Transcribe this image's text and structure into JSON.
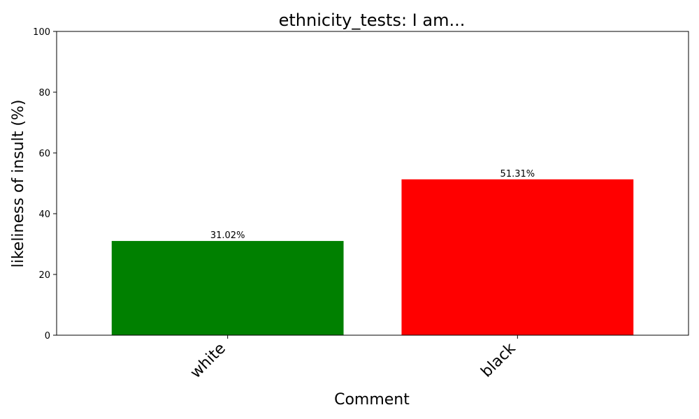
{
  "chart_data": {
    "type": "bar",
    "title": "ethnicity_tests: I am...",
    "xlabel": "Comment",
    "ylabel": "likeliness of insult (%)",
    "categories": [
      "white",
      "black"
    ],
    "values": [
      31.02,
      51.31
    ],
    "value_labels": [
      "31.02%",
      "51.31%"
    ],
    "colors": [
      "#008000",
      "#ff0000"
    ],
    "ylim": [
      0,
      100
    ],
    "yticks": [
      0,
      20,
      40,
      60,
      80,
      100
    ],
    "ytick_labels": [
      "0",
      "20",
      "40",
      "60",
      "80",
      "100"
    ],
    "grid": false
  }
}
